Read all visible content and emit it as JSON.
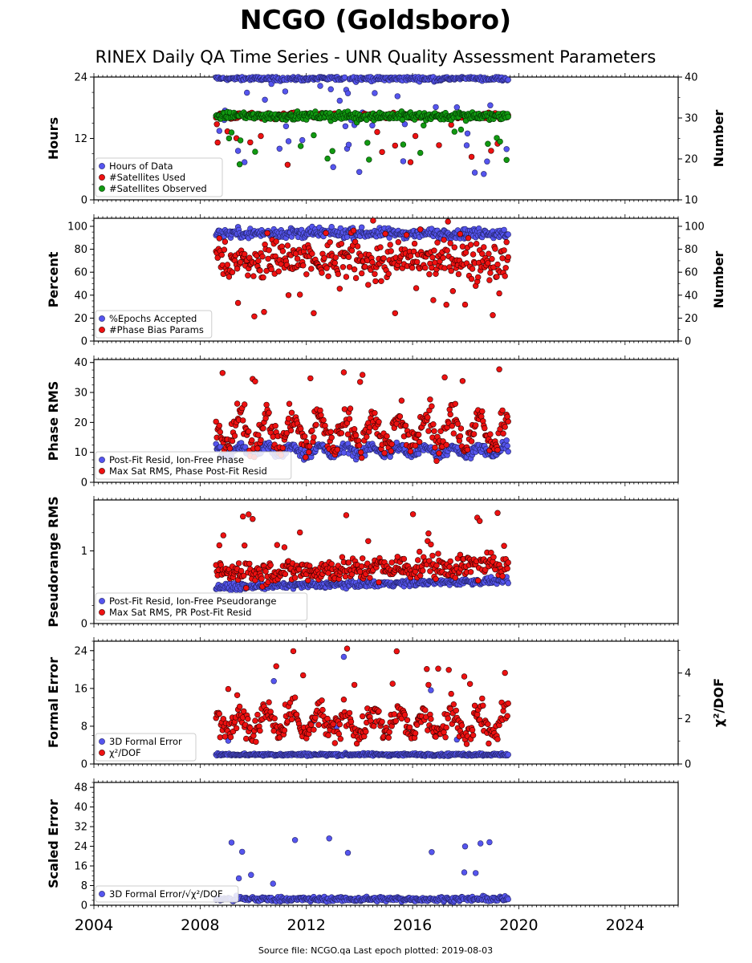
{
  "figure": {
    "title": "NCGO (Goldsboro)",
    "subtitle": "RINEX Daily QA Time Series - UNR Quality Assessment Parameters",
    "footer": "Source file: NCGO.qa Last epoch plotted: 2019-08-03",
    "x_ticks": [
      "2004",
      "2008",
      "2012",
      "2016",
      "2020",
      "2024"
    ]
  },
  "chart_data": [
    {
      "type": "scatter",
      "xlim": [
        2004,
        2026
      ],
      "ylabel": "Hours",
      "ylim": [
        0,
        24
      ],
      "yticks": [
        "0",
        "12",
        "24"
      ],
      "ylabel_right": "Number",
      "ylim_right": [
        10,
        40
      ],
      "yticks_right": [
        "10",
        "20",
        "30",
        "40"
      ],
      "legend": [
        {
          "label": "Hours of Data",
          "color": "#5555ee"
        },
        {
          "label": "#Satellites Used",
          "color": "#ee1111"
        },
        {
          "label": "#Satellites Observed",
          "color": "#119911"
        }
      ],
      "series": [
        {
          "name": "Hours of Data",
          "axis": "left",
          "color": "#5555ee",
          "x_range": [
            2008.6,
            2019.6
          ],
          "typical": 23.7,
          "spread": 0.3,
          "outliers": 0.12,
          "outlier_range": [
            5,
            23
          ]
        },
        {
          "name": "#Satellites Used",
          "axis": "right",
          "color": "#ee1111",
          "x_range": [
            2008.6,
            2019.6
          ],
          "typical": 30.5,
          "spread": 0.5,
          "outliers": 0.06,
          "outlier_range": [
            18,
            30
          ]
        },
        {
          "name": "#Satellites Observed",
          "axis": "right",
          "color": "#119911",
          "x_range": [
            2008.6,
            2019.6
          ],
          "typical": 30.5,
          "spread": 0.7,
          "outliers": 0.06,
          "outlier_range": [
            18,
            30
          ]
        }
      ]
    },
    {
      "type": "scatter",
      "xlim": [
        2004,
        2026
      ],
      "ylabel": "Percent",
      "ylim": [
        0,
        107
      ],
      "yticks": [
        "0",
        "20",
        "40",
        "60",
        "80",
        "100"
      ],
      "ylabel_right": "Number",
      "ylim_right": [
        0,
        107
      ],
      "yticks_right": [
        "0",
        "20",
        "40",
        "60",
        "80",
        "100"
      ],
      "legend": [
        {
          "label": "%Epochs Accepted",
          "color": "#5555ee"
        },
        {
          "label": "#Phase Bias Params",
          "color": "#ee1111"
        }
      ],
      "series": [
        {
          "name": "%Epochs Accepted",
          "axis": "left",
          "color": "#5555ee",
          "x_range": [
            2008.6,
            2019.6
          ],
          "typical": 94,
          "spread": 3,
          "outliers": 0.01,
          "outlier_range": [
            85,
            100
          ]
        },
        {
          "name": "#Phase Bias Params",
          "axis": "right",
          "color": "#ee1111",
          "x_range": [
            2008.6,
            2019.6
          ],
          "typical": 70,
          "spread": 12,
          "outliers": 0.08,
          "outlier_range": [
            20,
            106
          ]
        }
      ]
    },
    {
      "type": "scatter",
      "xlim": [
        2004,
        2026
      ],
      "ylabel": "Phase RMS",
      "ylim": [
        0,
        41
      ],
      "yticks": [
        "0",
        "10",
        "20",
        "30",
        "40"
      ],
      "legend": [
        {
          "label": "Post-Fit Resid, Ion-Free Phase",
          "color": "#5555ee"
        },
        {
          "label": "Max Sat RMS, Phase Post-Fit Resid",
          "color": "#ee1111"
        }
      ],
      "series": [
        {
          "name": "Post-Fit Resid, Ion-Free Phase",
          "axis": "left",
          "color": "#5555ee",
          "x_range": [
            2008.6,
            2019.6
          ],
          "typical": 10.5,
          "spread": 1.2,
          "seasonal": 1.5,
          "outliers": 0.0,
          "outlier_range": [
            5,
            13
          ]
        },
        {
          "name": "Max Sat RMS, Phase Post-Fit Resid",
          "axis": "left",
          "color": "#ee1111",
          "x_range": [
            2008.6,
            2019.6
          ],
          "typical": 17,
          "spread": 3.5,
          "seasonal": 5,
          "outliers": 0.05,
          "outlier_range": [
            25,
            39
          ]
        }
      ]
    },
    {
      "type": "scatter",
      "xlim": [
        2004,
        2026
      ],
      "ylabel": "Pseudorange RMS",
      "ylim": [
        0,
        1.7
      ],
      "yticks": [
        "0",
        "1"
      ],
      "legend": [
        {
          "label": "Post-Fit Resid, Ion-Free Pseudorange",
          "color": "#5555ee"
        },
        {
          "label": "Max Sat RMS, PR Post-Fit Resid",
          "color": "#ee1111"
        }
      ],
      "series": [
        {
          "name": "Post-Fit Resid, Ion-Free Pseudorange",
          "axis": "left",
          "color": "#5555ee",
          "x_range": [
            2008.6,
            2019.6
          ],
          "typical": 0.5,
          "spread": 0.03,
          "trend": 0.008,
          "outliers": 0.0,
          "outlier_range": [
            0.5,
            1.0
          ]
        },
        {
          "name": "Max Sat RMS, PR Post-Fit Resid",
          "axis": "left",
          "color": "#ee1111",
          "x_range": [
            2008.6,
            2019.6
          ],
          "typical": 0.7,
          "spread": 0.12,
          "trend": 0.01,
          "outliers": 0.05,
          "outlier_range": [
            1.0,
            1.6
          ]
        }
      ]
    },
    {
      "type": "scatter",
      "xlim": [
        2004,
        2026
      ],
      "ylabel": "Formal Error",
      "ylim": [
        0,
        26
      ],
      "yticks": [
        "0",
        "8",
        "16",
        "24"
      ],
      "ylabel_right": "χ²/DOF",
      "ylim_right": [
        0,
        5.4
      ],
      "yticks_right": [
        "0",
        "2",
        "4"
      ],
      "legend": [
        {
          "label": "3D Formal Error",
          "color": "#5555ee"
        },
        {
          "label": "χ²/DOF",
          "color": "#ee1111"
        }
      ],
      "series": [
        {
          "name": "3D Formal Error",
          "axis": "left",
          "color": "#5555ee",
          "x_range": [
            2008.6,
            2019.6
          ],
          "typical": 2,
          "spread": 0.2,
          "outliers": 0.02,
          "outlier_range": [
            3,
            24
          ]
        },
        {
          "name": "χ²/DOF",
          "axis": "right",
          "color": "#ee1111",
          "x_range": [
            2008.6,
            2019.6
          ],
          "typical": 1.8,
          "spread": 0.45,
          "seasonal": 0.5,
          "outliers": 0.04,
          "outlier_range": [
            2.8,
            5.2
          ]
        }
      ]
    },
    {
      "type": "scatter",
      "xlim": [
        2004,
        2026
      ],
      "ylabel": "Scaled Error",
      "ylim": [
        0,
        50
      ],
      "yticks": [
        "0",
        "8",
        "16",
        "24",
        "32",
        "40",
        "48"
      ],
      "legend": [
        {
          "label": "3D Formal Error/√χ²/DOF",
          "color": "#5555ee"
        }
      ],
      "series": [
        {
          "name": "3D Formal Error/√χ²/DOF",
          "axis": "left",
          "color": "#5555ee",
          "x_range": [
            2008.6,
            2019.6
          ],
          "typical": 2.5,
          "spread": 0.7,
          "outliers": 0.02,
          "outlier_range": [
            4,
            30
          ]
        }
      ]
    }
  ]
}
